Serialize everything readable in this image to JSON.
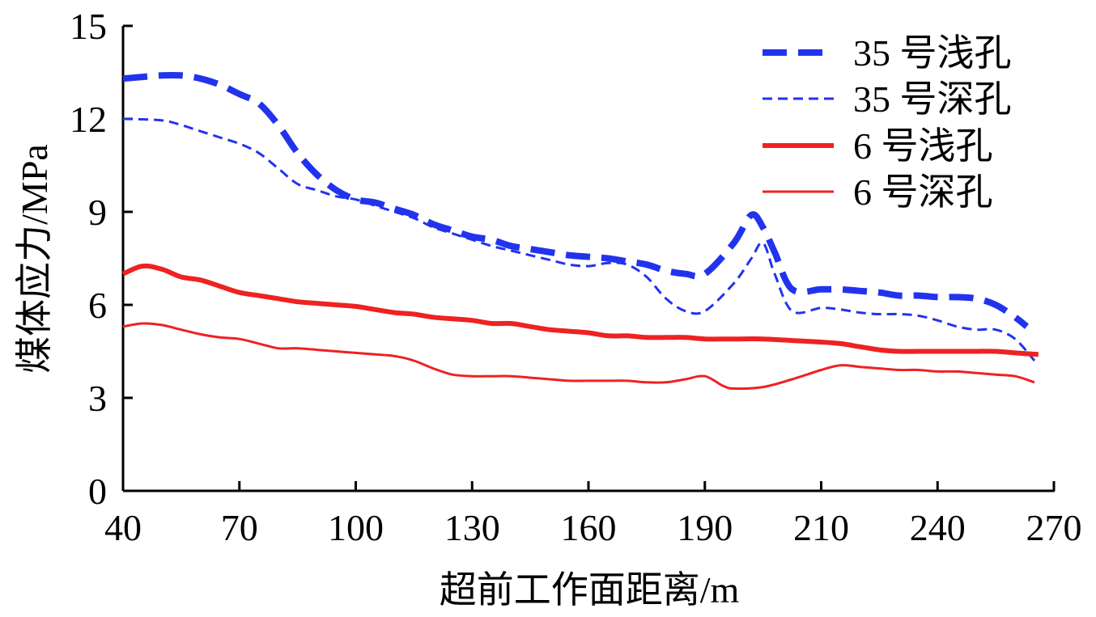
{
  "chart_data": {
    "type": "line",
    "title": "",
    "xlabel": "超前工作面距离/m",
    "ylabel": "煤体应力/MPa",
    "xlim": [
      40,
      270
    ],
    "ylim": [
      0,
      15
    ],
    "x_ticks": [
      40,
      70,
      100,
      130,
      160,
      190,
      210,
      240,
      270
    ],
    "y_ticks": [
      0,
      3,
      6,
      9,
      12,
      15
    ],
    "grid": false,
    "legend_position": "top-right",
    "series": [
      {
        "name": "35 号浅孔",
        "color": "#2233ee",
        "style": "thick-dashed",
        "x": [
          40,
          50,
          55,
          60,
          65,
          70,
          75,
          80,
          85,
          90,
          95,
          100,
          105,
          110,
          115,
          120,
          125,
          130,
          135,
          140,
          145,
          150,
          155,
          160,
          165,
          170,
          175,
          180,
          185,
          190,
          195,
          198,
          200,
          202,
          205,
          210,
          215,
          220,
          225,
          230,
          235,
          240,
          245,
          250,
          255,
          260,
          263
        ],
        "y": [
          13.3,
          13.4,
          13.4,
          13.3,
          13.1,
          12.8,
          12.5,
          11.8,
          10.9,
          10.2,
          9.7,
          9.4,
          9.3,
          9.1,
          8.9,
          8.6,
          8.4,
          8.2,
          8.1,
          7.9,
          7.8,
          7.7,
          7.6,
          7.55,
          7.5,
          7.4,
          7.3,
          7.1,
          7.0,
          7.0,
          8.0,
          8.9,
          8.5,
          7.7,
          6.5,
          6.5,
          6.5,
          6.45,
          6.4,
          6.3,
          6.3,
          6.25,
          6.25,
          6.2,
          6.0,
          5.6,
          5.3
        ]
      },
      {
        "name": "35 号深孔",
        "color": "#2233ee",
        "style": "thin-dashed",
        "x": [
          40,
          50,
          55,
          60,
          65,
          70,
          75,
          80,
          85,
          90,
          95,
          100,
          105,
          110,
          115,
          120,
          125,
          130,
          135,
          140,
          145,
          150,
          155,
          160,
          165,
          170,
          175,
          180,
          185,
          190,
          195,
          198,
          200,
          202,
          205,
          210,
          215,
          220,
          225,
          230,
          235,
          240,
          245,
          250,
          255,
          260,
          265
        ],
        "y": [
          12.0,
          11.95,
          11.8,
          11.6,
          11.4,
          11.2,
          10.9,
          10.4,
          9.9,
          9.7,
          9.5,
          9.4,
          9.2,
          9.0,
          8.8,
          8.5,
          8.3,
          8.1,
          7.9,
          7.75,
          7.6,
          7.45,
          7.3,
          7.25,
          7.35,
          7.3,
          6.9,
          6.2,
          5.8,
          5.8,
          6.7,
          7.5,
          8.0,
          7.0,
          5.8,
          5.9,
          5.85,
          5.75,
          5.7,
          5.7,
          5.65,
          5.5,
          5.3,
          5.2,
          5.2,
          4.9,
          4.2
        ]
      },
      {
        "name": "6 号浅孔",
        "color": "#ee2222",
        "style": "thick-solid",
        "x": [
          40,
          45,
          50,
          55,
          60,
          65,
          70,
          75,
          80,
          85,
          90,
          95,
          100,
          105,
          110,
          115,
          120,
          125,
          130,
          135,
          140,
          145,
          150,
          155,
          160,
          165,
          170,
          175,
          180,
          185,
          190,
          195,
          200,
          205,
          210,
          215,
          220,
          225,
          230,
          235,
          240,
          245,
          250,
          255,
          260,
          266
        ],
        "y": [
          7.0,
          7.25,
          7.15,
          6.9,
          6.8,
          6.6,
          6.4,
          6.3,
          6.2,
          6.1,
          6.05,
          6.0,
          5.95,
          5.85,
          5.75,
          5.7,
          5.6,
          5.55,
          5.5,
          5.4,
          5.4,
          5.3,
          5.2,
          5.15,
          5.1,
          5.0,
          5.0,
          4.95,
          4.95,
          4.95,
          4.9,
          4.9,
          4.9,
          4.85,
          4.8,
          4.75,
          4.65,
          4.55,
          4.5,
          4.5,
          4.5,
          4.5,
          4.5,
          4.5,
          4.45,
          4.4
        ]
      },
      {
        "name": "6 号深孔",
        "color": "#ee2222",
        "style": "thin-solid",
        "x": [
          40,
          45,
          50,
          55,
          60,
          65,
          70,
          75,
          80,
          85,
          90,
          95,
          100,
          105,
          110,
          115,
          120,
          125,
          130,
          135,
          140,
          145,
          150,
          155,
          160,
          165,
          170,
          175,
          180,
          185,
          190,
          193,
          195,
          200,
          205,
          210,
          215,
          220,
          225,
          230,
          235,
          240,
          245,
          250,
          255,
          260,
          265
        ],
        "y": [
          5.3,
          5.4,
          5.35,
          5.2,
          5.05,
          4.95,
          4.9,
          4.75,
          4.6,
          4.6,
          4.55,
          4.5,
          4.45,
          4.4,
          4.35,
          4.2,
          3.95,
          3.75,
          3.7,
          3.7,
          3.7,
          3.65,
          3.6,
          3.55,
          3.55,
          3.55,
          3.55,
          3.5,
          3.5,
          3.6,
          3.7,
          3.4,
          3.3,
          3.35,
          3.6,
          3.9,
          4.05,
          4.0,
          3.95,
          3.9,
          3.9,
          3.85,
          3.85,
          3.8,
          3.75,
          3.7,
          3.5
        ]
      }
    ]
  }
}
